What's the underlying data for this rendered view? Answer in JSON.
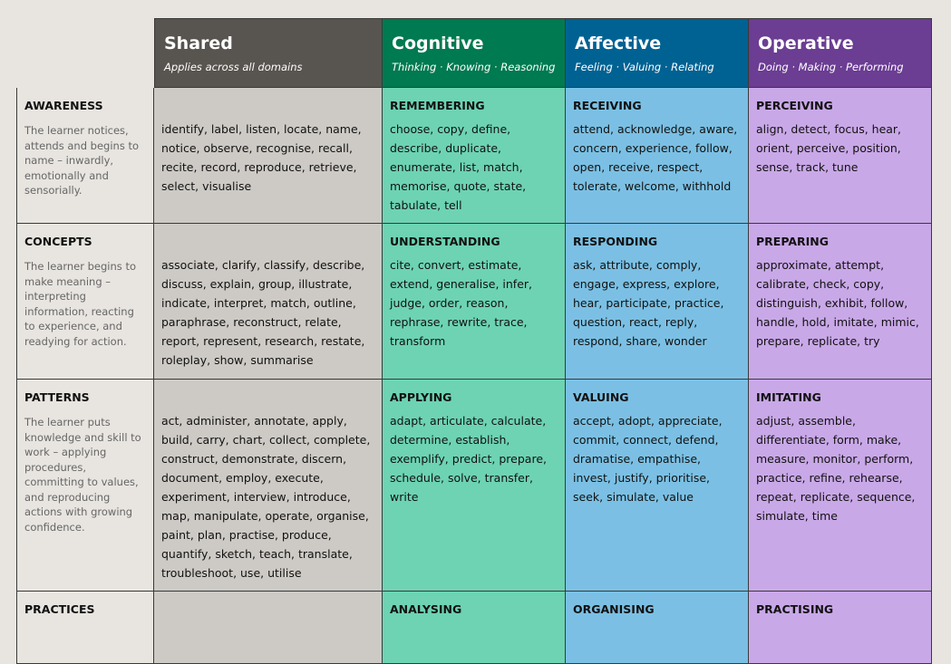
{
  "columns": [
    {
      "title": "Shared",
      "subtitle": "Applies across all domains",
      "color": "#58544f"
    },
    {
      "title": "Cognitive",
      "subtitle": "Thinking · Knowing · Reasoning",
      "color": "#007a50"
    },
    {
      "title": "Affective",
      "subtitle": "Feeling · Valuing · Relating",
      "color": "#006293"
    },
    {
      "title": "Operative",
      "subtitle": "Doing · Making · Performing",
      "color": "#6b3d93"
    }
  ],
  "rows": [
    {
      "name": "AWARENESS",
      "description": "The learner notices, attends and begins to name – inwardly, emotionally and sensorially.",
      "shared": "identify, label, listen, locate, name, notice, observe, recognise, recall, recite, record, reproduce, retrieve, select, visualise",
      "cognitive": {
        "level": "REMEMBERING",
        "verbs": "choose, copy, define, describe, duplicate, enumerate, list, match, memorise, quote, state, tabulate, tell"
      },
      "affective": {
        "level": "RECEIVING",
        "verbs": "attend, acknowledge, aware, concern, experience, follow, open, receive, respect, tolerate, welcome, withhold"
      },
      "operative": {
        "level": "PERCEIVING",
        "verbs": "align, detect, focus, hear, orient, perceive, position, sense, track, tune"
      }
    },
    {
      "name": "CONCEPTS",
      "description": "The learner begins to make meaning – interpreting information, reacting to experience, and readying for action.",
      "shared": "associate, clarify, classify, describe, discuss, explain, group, illustrate, indicate, interpret, match, outline, paraphrase, reconstruct, relate, report, represent, research, restate, roleplay, show, summarise",
      "cognitive": {
        "level": "UNDERSTANDING",
        "verbs": "cite, convert, estimate, extend, generalise, infer, judge, order, reason, rephrase, rewrite, trace, transform"
      },
      "affective": {
        "level": "RESPONDING",
        "verbs": "ask, attribute, comply, engage, express, explore, hear, participate, practice, question, react, reply, respond, share, wonder"
      },
      "operative": {
        "level": "PREPARING",
        "verbs": "approximate, attempt, calibrate, check, copy, distinguish, exhibit, follow, handle, hold, imitate, mimic, prepare, replicate, try"
      }
    },
    {
      "name": "PATTERNS",
      "description": "The learner puts knowledge and skill to work – applying procedures, committing to values, and reproducing actions with growing confidence.",
      "shared": "act, administer, annotate, apply, build, carry, chart, collect, complete, construct, demonstrate, discern, document, employ, execute, experiment, interview, introduce, map, manipulate, operate, organise, paint, plan, practise, produce, quantify, sketch, teach, translate, troubleshoot, use, utilise",
      "cognitive": {
        "level": "APPLYING",
        "verbs": "adapt, articulate, calculate, determine, establish, exemplify, predict, prepare, schedule, solve, transfer, write"
      },
      "affective": {
        "level": "VALUING",
        "verbs": "accept, adopt, appreciate, commit, connect, defend, dramatise, empathise, invest, justify, prioritise, seek, simulate, value"
      },
      "operative": {
        "level": "IMITATING",
        "verbs": "adjust, assemble, differentiate, form, make, measure, monitor, perform, practice, refine, rehearse, repeat, replicate, sequence, simulate, time"
      }
    },
    {
      "name": "PRACTICES",
      "cognitive": {
        "level": "ANALYSING"
      },
      "affective": {
        "level": "ORGANISING"
      },
      "operative": {
        "level": "PRACTISING"
      }
    }
  ]
}
